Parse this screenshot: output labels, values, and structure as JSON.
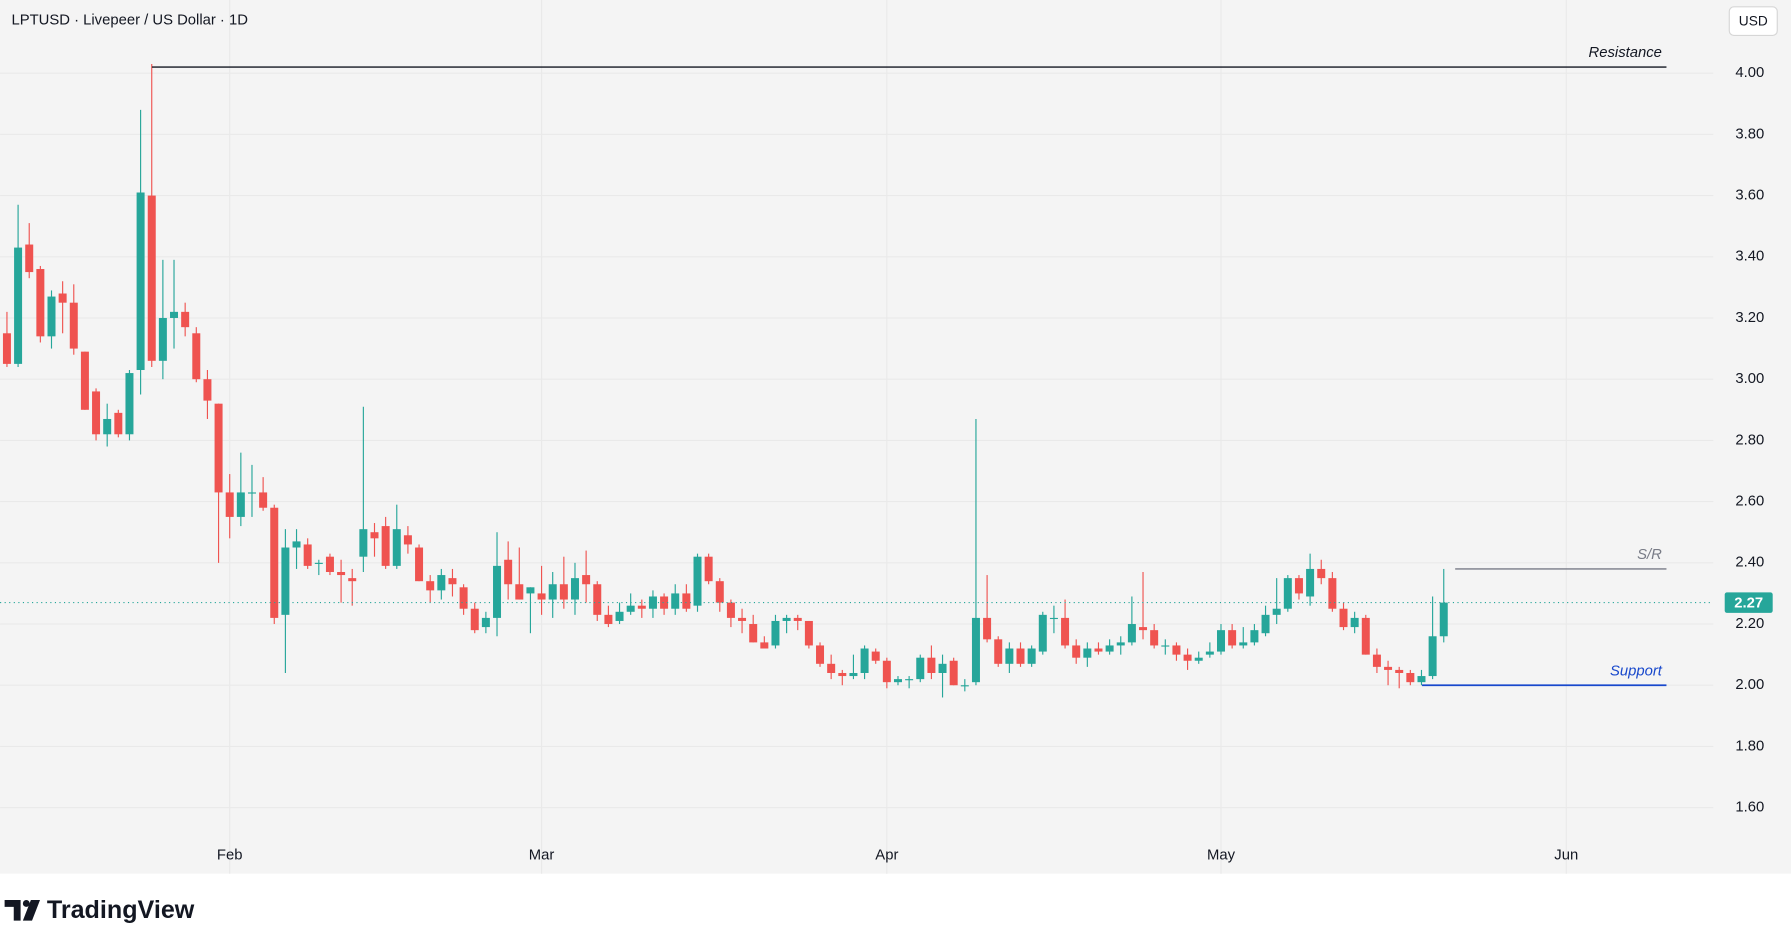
{
  "chart_data": {
    "type": "candlestick",
    "title": "LPTUSD · Livepeer / US Dollar · 1D",
    "currency": "USD",
    "brand": "TradingView",
    "up_color": "#26a69a",
    "down_color": "#ef5350",
    "grid": true,
    "xlim": [
      -0.62,
      153.2
    ],
    "xticks": [
      {
        "value": 20,
        "label": "Feb"
      },
      {
        "value": 48,
        "label": "Mar"
      },
      {
        "value": 79,
        "label": "Apr"
      },
      {
        "value": 109,
        "label": "May"
      },
      {
        "value": 140,
        "label": "Jun"
      }
    ],
    "ylim": [
      1.384,
      4.239
    ],
    "yticks": [
      {
        "value": 1.6,
        "label": "1.60"
      },
      {
        "value": 1.8,
        "label": "1.80"
      },
      {
        "value": 2.0,
        "label": "2.00"
      },
      {
        "value": 2.2,
        "label": "2.20"
      },
      {
        "value": 2.4,
        "label": "2.40"
      },
      {
        "value": 2.6,
        "label": "2.60"
      },
      {
        "value": 2.8,
        "label": "2.80"
      },
      {
        "value": 3.0,
        "label": "3.00"
      },
      {
        "value": 3.2,
        "label": "3.20"
      },
      {
        "value": 3.4,
        "label": "3.40"
      },
      {
        "value": 3.6,
        "label": "3.60"
      },
      {
        "value": 3.8,
        "label": "3.80"
      },
      {
        "value": 4.0,
        "label": "4.00"
      }
    ],
    "last_price": 2.27,
    "annotations": [
      {
        "text": "Resistance",
        "value": 4.02,
        "color": "#131722"
      },
      {
        "text": "S/R",
        "value": 2.38,
        "color": "#787b86"
      },
      {
        "text": "Support",
        "value": 2.0,
        "color": "#1848cc"
      }
    ],
    "open": [
      3.15,
      3.05,
      3.44,
      3.36,
      3.14,
      3.28,
      3.25,
      3.09,
      2.96,
      2.82,
      2.89,
      2.82,
      3.03,
      3.6,
      3.06,
      3.2,
      3.22,
      3.15,
      3.0,
      2.92,
      2.63,
      2.55,
      2.63,
      2.63,
      2.58,
      2.23,
      2.45,
      2.46,
      2.4,
      2.42,
      2.37,
      2.35,
      2.42,
      2.5,
      2.52,
      2.39,
      2.49,
      2.45,
      2.34,
      2.31,
      2.35,
      2.32,
      2.25,
      2.19,
      2.22,
      2.41,
      2.33,
      2.3,
      2.3,
      2.28,
      2.33,
      2.28,
      2.36,
      2.33,
      2.23,
      2.21,
      2.24,
      2.26,
      2.25,
      2.29,
      2.25,
      2.3,
      2.26,
      2.42,
      2.34,
      2.27,
      2.22,
      2.2,
      2.14,
      2.13,
      2.21,
      2.22,
      2.21,
      2.13,
      2.07,
      2.04,
      2.03,
      2.04,
      2.11,
      2.08,
      2.01,
      2.02,
      2.02,
      2.09,
      2.04,
      2.08,
      2.0,
      2.01,
      2.22,
      2.15,
      2.07,
      2.12,
      2.07,
      2.11,
      2.22,
      2.22,
      2.13,
      2.09,
      2.12,
      2.11,
      2.13,
      2.14,
      2.19,
      2.18,
      2.13,
      2.13,
      2.1,
      2.08,
      2.1,
      2.11,
      2.18,
      2.13,
      2.14,
      2.17,
      2.23,
      2.25,
      2.35,
      2.29,
      2.38,
      2.35,
      2.25,
      2.19,
      2.22,
      2.1,
      2.06,
      2.05,
      2.04,
      2.01,
      2.03,
      2.16
    ],
    "high": [
      3.22,
      3.57,
      3.51,
      3.37,
      3.29,
      3.32,
      3.31,
      3.09,
      2.97,
      2.92,
      2.9,
      3.03,
      3.88,
      4.03,
      3.39,
      3.39,
      3.25,
      3.17,
      3.03,
      2.92,
      2.69,
      2.76,
      2.72,
      2.68,
      2.59,
      2.51,
      2.51,
      2.48,
      2.41,
      2.43,
      2.41,
      2.38,
      2.91,
      2.53,
      2.55,
      2.59,
      2.52,
      2.46,
      2.36,
      2.38,
      2.38,
      2.33,
      2.27,
      2.24,
      2.5,
      2.47,
      2.45,
      2.32,
      2.39,
      2.37,
      2.42,
      2.4,
      2.44,
      2.34,
      2.26,
      2.27,
      2.3,
      2.28,
      2.31,
      2.3,
      2.33,
      2.33,
      2.43,
      2.43,
      2.35,
      2.28,
      2.25,
      2.23,
      2.16,
      2.23,
      2.23,
      2.23,
      2.21,
      2.14,
      2.1,
      2.05,
      2.1,
      2.13,
      2.12,
      2.09,
      2.03,
      2.03,
      2.1,
      2.13,
      2.1,
      2.09,
      2.02,
      2.87,
      2.36,
      2.16,
      2.14,
      2.14,
      2.13,
      2.24,
      2.26,
      2.28,
      2.15,
      2.14,
      2.14,
      2.15,
      2.16,
      2.29,
      2.37,
      2.2,
      2.15,
      2.14,
      2.12,
      2.11,
      2.14,
      2.2,
      2.2,
      2.19,
      2.2,
      2.26,
      2.35,
      2.36,
      2.36,
      2.43,
      2.41,
      2.37,
      2.27,
      2.24,
      2.23,
      2.12,
      2.08,
      2.06,
      2.05,
      2.05,
      2.29,
      2.38
    ],
    "low": [
      3.04,
      3.04,
      3.33,
      3.12,
      3.1,
      3.15,
      3.08,
      2.9,
      2.8,
      2.78,
      2.81,
      2.8,
      2.95,
      3.04,
      3.0,
      3.1,
      3.14,
      2.99,
      2.87,
      2.4,
      2.48,
      2.52,
      2.55,
      2.57,
      2.2,
      2.04,
      2.38,
      2.38,
      2.36,
      2.36,
      2.27,
      2.26,
      2.37,
      2.42,
      2.38,
      2.38,
      2.43,
      2.34,
      2.27,
      2.28,
      2.29,
      2.23,
      2.17,
      2.17,
      2.16,
      2.28,
      2.28,
      2.17,
      2.23,
      2.22,
      2.25,
      2.23,
      2.27,
      2.21,
      2.19,
      2.2,
      2.23,
      2.22,
      2.22,
      2.23,
      2.23,
      2.24,
      2.24,
      2.33,
      2.24,
      2.19,
      2.17,
      2.14,
      2.12,
      2.12,
      2.17,
      2.18,
      2.12,
      2.06,
      2.02,
      2.0,
      2.02,
      2.02,
      2.07,
      1.99,
      2.0,
      1.99,
      2.01,
      2.02,
      1.96,
      2.0,
      1.98,
      2.0,
      2.14,
      2.06,
      2.04,
      2.06,
      2.06,
      2.1,
      2.17,
      2.12,
      2.07,
      2.06,
      2.1,
      2.1,
      2.1,
      2.13,
      2.15,
      2.12,
      2.1,
      2.08,
      2.05,
      2.07,
      2.09,
      2.1,
      2.12,
      2.12,
      2.13,
      2.16,
      2.2,
      2.24,
      2.28,
      2.26,
      2.33,
      2.24,
      2.18,
      2.17,
      2.1,
      2.04,
      2.0,
      1.99,
      2.0,
      2.0,
      2.02,
      2.14
    ],
    "close": [
      3.05,
      3.43,
      3.35,
      3.14,
      3.27,
      3.25,
      3.1,
      2.9,
      2.82,
      2.87,
      2.82,
      3.02,
      3.61,
      3.06,
      3.2,
      3.22,
      3.17,
      3.0,
      2.93,
      2.63,
      2.55,
      2.63,
      2.63,
      2.58,
      2.22,
      2.45,
      2.47,
      2.39,
      2.4,
      2.37,
      2.36,
      2.34,
      2.51,
      2.48,
      2.39,
      2.51,
      2.46,
      2.34,
      2.31,
      2.36,
      2.33,
      2.25,
      2.18,
      2.22,
      2.39,
      2.33,
      2.28,
      2.32,
      2.28,
      2.33,
      2.28,
      2.35,
      2.33,
      2.23,
      2.2,
      2.24,
      2.26,
      2.25,
      2.29,
      2.25,
      2.3,
      2.25,
      2.42,
      2.34,
      2.27,
      2.22,
      2.21,
      2.14,
      2.12,
      2.21,
      2.22,
      2.21,
      2.13,
      2.07,
      2.04,
      2.03,
      2.04,
      2.12,
      2.08,
      2.01,
      2.02,
      2.02,
      2.09,
      2.04,
      2.07,
      2.0,
      2.0,
      2.22,
      2.15,
      2.07,
      2.12,
      2.07,
      2.12,
      2.23,
      2.22,
      2.13,
      2.09,
      2.12,
      2.11,
      2.13,
      2.14,
      2.2,
      2.18,
      2.13,
      2.13,
      2.1,
      2.08,
      2.09,
      2.11,
      2.18,
      2.13,
      2.14,
      2.18,
      2.23,
      2.25,
      2.35,
      2.3,
      2.38,
      2.35,
      2.25,
      2.19,
      2.22,
      2.1,
      2.06,
      2.05,
      2.04,
      2.01,
      2.03,
      2.16,
      2.27
    ]
  }
}
